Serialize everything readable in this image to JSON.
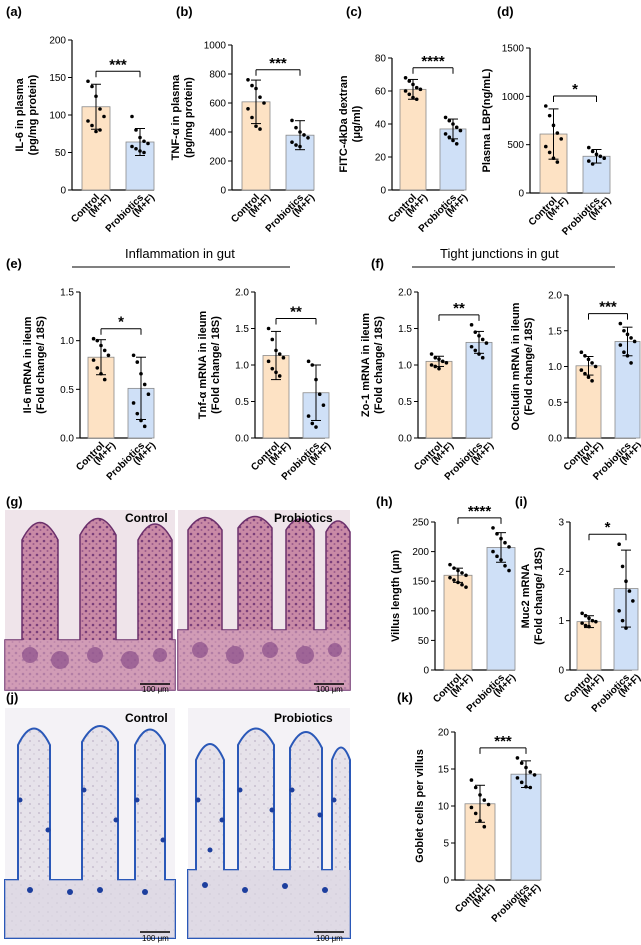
{
  "panel_labels": [
    "(a)",
    "(b)",
    "(c)",
    "(d)",
    "(e)",
    "(f)",
    "(g)",
    "(h)",
    "(i)",
    "(j)",
    "(k)"
  ],
  "headings": {
    "inflammation": "Inflammation in gut",
    "tight_junctions": "Tight junctions in gut"
  },
  "micrographs": {
    "he_control_label": "Control",
    "he_probiotics_label": "Probiotics",
    "ab_control_label": "Control",
    "ab_probiotics_label": "Probiotics",
    "scale_bar": "100 μm"
  },
  "colors": {
    "control_fill": "#fde2c4",
    "probiotics_fill": "#cfe0f7",
    "bar_stroke": "#8a8a8a",
    "point": "#000000"
  },
  "chart_data": [
    {
      "id": "a",
      "type": "bar",
      "panel": "(a)",
      "ylabel_lines": [
        "IL-6 in plasma",
        "(pg/mg protein)"
      ],
      "categories": [
        [
          "Control",
          "(M+F)"
        ],
        [
          "Probiotics",
          "(M+F)"
        ]
      ],
      "ylim": [
        0,
        200
      ],
      "yticks": [
        0,
        50,
        100,
        150,
        200
      ],
      "values": [
        111,
        64
      ],
      "sd": [
        30,
        18
      ],
      "points": [
        [
          145,
          138,
          125,
          108,
          98,
          92,
          86,
          78,
          80
        ],
        [
          98,
          80,
          70,
          65,
          62,
          58,
          55,
          52,
          50
        ]
      ],
      "significance": "***"
    },
    {
      "id": "b",
      "type": "bar",
      "panel": "(b)",
      "ylabel_lines": [
        "TNF-α in plasma",
        "(pg/mg protein)"
      ],
      "categories": [
        [
          "Control",
          "(M+F)"
        ],
        [
          "Probiotics",
          "(M+F)"
        ]
      ],
      "ylim": [
        0,
        1000
      ],
      "yticks": [
        0,
        200,
        400,
        600,
        800,
        1000
      ],
      "values": [
        608,
        378
      ],
      "sd": [
        150,
        100
      ],
      "points": [
        [
          760,
          720,
          700,
          640,
          600,
          560,
          500,
          440,
          420
        ],
        [
          480,
          430,
          400,
          380,
          360,
          330,
          310,
          300
        ]
      ],
      "significance": "***"
    },
    {
      "id": "c",
      "type": "bar",
      "panel": "(c)",
      "ylabel_lines": [
        "FITC-4kDa dextran",
        "(μg/ml)"
      ],
      "categories": [
        [
          "Control",
          "(M+F)"
        ],
        [
          "Probiotics",
          "(M+F)"
        ]
      ],
      "ylim": [
        0,
        80
      ],
      "yticks": [
        0,
        20,
        40,
        60,
        80
      ],
      "values": [
        61,
        37
      ],
      "sd": [
        6,
        6
      ],
      "points": [
        [
          68,
          66,
          64,
          62,
          61,
          60,
          58,
          56,
          55
        ],
        [
          44,
          42,
          40,
          38,
          36,
          34,
          32,
          30,
          28
        ]
      ],
      "significance": "****"
    },
    {
      "id": "d",
      "type": "bar",
      "panel": "(d)",
      "ylabel_lines": [
        "Plasma LBP(ng/mL)"
      ],
      "categories": [
        [
          "Control",
          "(M+F)"
        ],
        [
          "Probiotics",
          "(M+F)"
        ]
      ],
      "ylim": [
        0,
        1500
      ],
      "yticks": [
        0,
        500,
        1000,
        1500
      ],
      "values": [
        610,
        380
      ],
      "sd": [
        260,
        70
      ],
      "points": [
        [
          900,
          800,
          700,
          620,
          560,
          480,
          420,
          360,
          320
        ],
        [
          470,
          430,
          400,
          380,
          360,
          330,
          300
        ]
      ],
      "significance": "*"
    },
    {
      "id": "e1",
      "type": "bar",
      "panel": "(e)",
      "ylabel_lines": [
        "Il-6 mRNA in ileum",
        "(Fold change/ 18S)"
      ],
      "categories": [
        [
          "Control",
          "(M+F)"
        ],
        [
          "Probiotics",
          "(M+F)"
        ]
      ],
      "ylim": [
        0,
        1.5
      ],
      "yticks": [
        0.0,
        0.5,
        1.0,
        1.5
      ],
      "values": [
        0.83,
        0.51
      ],
      "sd": [
        0.18,
        0.32
      ],
      "points": [
        [
          1.02,
          1.0,
          0.95,
          0.9,
          0.85,
          0.8,
          0.72,
          0.66,
          0.6
        ],
        [
          0.85,
          0.78,
          0.66,
          0.55,
          0.45,
          0.36,
          0.25,
          0.18,
          0.12
        ]
      ],
      "significance": "*"
    },
    {
      "id": "e2",
      "type": "bar",
      "panel": "",
      "ylabel_lines": [
        "Tnf-α mRNA in ileum",
        "(Fold change/ 18S)"
      ],
      "categories": [
        [
          "Control",
          "(M+F)"
        ],
        [
          "Probiotics",
          "(M+F)"
        ]
      ],
      "ylim": [
        0,
        2.0
      ],
      "yticks": [
        0.0,
        0.5,
        1.0,
        1.5,
        2.0
      ],
      "values": [
        1.13,
        0.62
      ],
      "sd": [
        0.33,
        0.38
      ],
      "points": [
        [
          1.5,
          1.35,
          1.2,
          1.15,
          1.1,
          1.05,
          0.95,
          0.9,
          0.85
        ],
        [
          1.05,
          1.0,
          0.8,
          0.6,
          0.45,
          0.3,
          0.2,
          0.15
        ]
      ],
      "significance": "**"
    },
    {
      "id": "f1",
      "type": "bar",
      "panel": "(f)",
      "ylabel_lines": [
        "Zo-1 mRNA in ileum",
        "(Fold change/ 18S)"
      ],
      "categories": [
        [
          "Control",
          "(M+F)"
        ],
        [
          "Probiotics",
          "(M+F)"
        ]
      ],
      "ylim": [
        0,
        2.0
      ],
      "yticks": [
        0.0,
        0.5,
        1.0,
        1.5,
        2.0
      ],
      "values": [
        1.05,
        1.31
      ],
      "sd": [
        0.07,
        0.15
      ],
      "points": [
        [
          1.15,
          1.1,
          1.08,
          1.05,
          1.03,
          1.0,
          0.98,
          0.95
        ],
        [
          1.55,
          1.45,
          1.4,
          1.35,
          1.3,
          1.25,
          1.2,
          1.15,
          1.1
        ]
      ],
      "significance": "**"
    },
    {
      "id": "f2",
      "type": "bar",
      "panel": "",
      "ylabel_lines": [
        "Occludin mRNA in ileum",
        "(Fold change/ 18S)"
      ],
      "categories": [
        [
          "Control",
          "(M+F)"
        ],
        [
          "Probiotics",
          "(M+F)"
        ]
      ],
      "ylim": [
        0,
        2.0
      ],
      "yticks": [
        0.0,
        0.5,
        1.0,
        1.5,
        2.0
      ],
      "values": [
        1.01,
        1.35
      ],
      "sd": [
        0.13,
        0.2
      ],
      "points": [
        [
          1.2,
          1.15,
          1.1,
          1.05,
          1.0,
          0.95,
          0.9,
          0.85,
          0.8
        ],
        [
          1.6,
          1.5,
          1.45,
          1.4,
          1.35,
          1.3,
          1.2,
          1.15,
          1.05
        ]
      ],
      "significance": "***"
    },
    {
      "id": "h",
      "type": "bar",
      "panel": "(h)",
      "ylabel_lines": [
        "Villus length (μm)"
      ],
      "categories": [
        [
          "Control",
          "(M+F)"
        ],
        [
          "Probiotics",
          "(M+F)"
        ]
      ],
      "ylim": [
        0,
        250
      ],
      "yticks": [
        0,
        50,
        100,
        150,
        200,
        250
      ],
      "values": [
        160,
        207
      ],
      "sd": [
        12,
        25
      ],
      "points": [
        [
          178,
          172,
          168,
          164,
          160,
          156,
          152,
          148,
          144,
          140
        ],
        [
          240,
          230,
          222,
          215,
          208,
          200,
          192,
          186,
          176,
          168
        ]
      ],
      "significance": "****"
    },
    {
      "id": "i",
      "type": "bar",
      "panel": "(i)",
      "ylabel_lines": [
        "Muc2 mRNA",
        "(Fold change/ 18S)"
      ],
      "categories": [
        [
          "Control",
          "(M+F)"
        ],
        [
          "Probiotics",
          "(M+F)"
        ]
      ],
      "ylim": [
        0,
        3
      ],
      "yticks": [
        0,
        1,
        2,
        3
      ],
      "values": [
        0.98,
        1.65
      ],
      "sd": [
        0.12,
        0.78
      ],
      "points": [
        [
          1.15,
          1.1,
          1.05,
          1.0,
          0.98,
          0.95,
          0.9,
          0.88
        ],
        [
          2.55,
          2.1,
          1.8,
          1.6,
          1.4,
          1.2,
          1.0,
          0.85
        ]
      ],
      "significance": "*"
    },
    {
      "id": "k",
      "type": "bar",
      "panel": "(k)",
      "ylabel_lines": [
        "Goblet cells per villus"
      ],
      "categories": [
        [
          "Control",
          "(M+F)"
        ],
        [
          "Probiotics",
          "(M+F)"
        ]
      ],
      "ylim": [
        0,
        20
      ],
      "yticks": [
        0,
        5,
        10,
        15,
        20
      ],
      "values": [
        10.3,
        14.3
      ],
      "sd": [
        2.5,
        1.8
      ],
      "points": [
        [
          13.5,
          12.5,
          11.5,
          10.8,
          10.2,
          9.8,
          9.0,
          8.0,
          7.2
        ],
        [
          16.5,
          15.8,
          15.2,
          14.6,
          14.2,
          13.8,
          13.2,
          12.6,
          12.5
        ]
      ],
      "significance": "***"
    }
  ]
}
